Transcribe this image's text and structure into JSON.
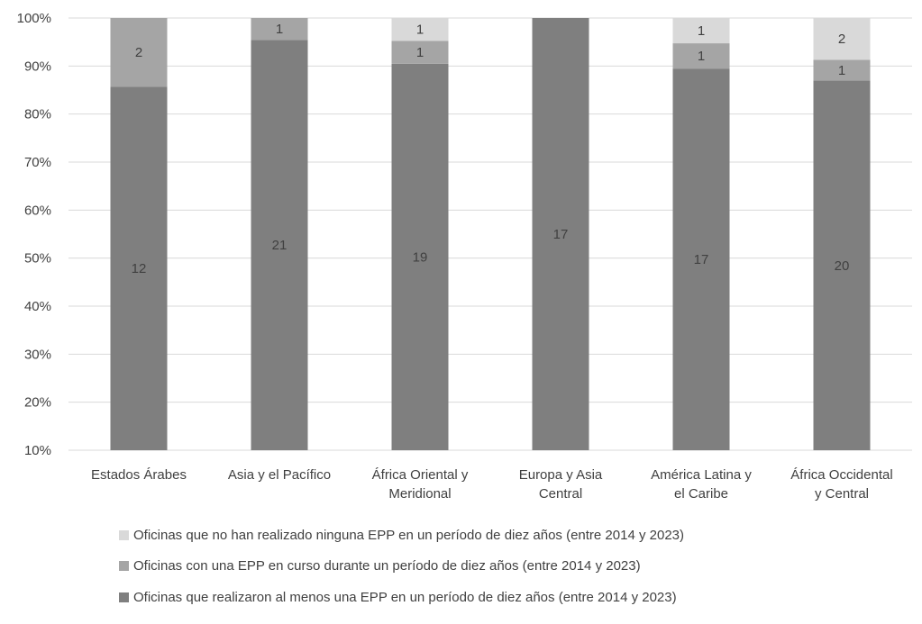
{
  "chart_data": {
    "type": "bar",
    "stacked": true,
    "normalized": true,
    "categories": [
      [
        "Estados Árabes"
      ],
      [
        "Asia y el Pacífico"
      ],
      [
        "África Oriental y",
        "Meridional"
      ],
      [
        "Europa y Asia",
        "Central"
      ],
      [
        "América Latina y",
        "el Caribe"
      ],
      [
        "África Occidental",
        "y Central"
      ]
    ],
    "series": [
      {
        "name": "Oficinas que realizaron al menos una EPP en un período de diez años (entre 2014 y 2023)",
        "values": [
          12,
          21,
          19,
          17,
          17,
          20
        ],
        "color": "#7f7f7f"
      },
      {
        "name": "Oficinas con una EPP en curso durante un período de diez años (entre 2014 y 2023)",
        "values": [
          2,
          1,
          1,
          0,
          1,
          1
        ],
        "color": "#a5a5a5"
      },
      {
        "name": "Oficinas que no han realizado ninguna EPP en un período de diez años (entre 2014 y 2023)",
        "values": [
          0,
          0,
          1,
          0,
          1,
          2
        ],
        "color": "#d9d9d9"
      }
    ],
    "ylim": [
      0.1,
      1.0
    ],
    "yticks": [
      "10%",
      "20%",
      "30%",
      "40%",
      "50%",
      "60%",
      "70%",
      "80%",
      "90%",
      "100%"
    ],
    "grid": true,
    "legend_position": "bottom",
    "legend_order": [
      2,
      1,
      0
    ]
  }
}
